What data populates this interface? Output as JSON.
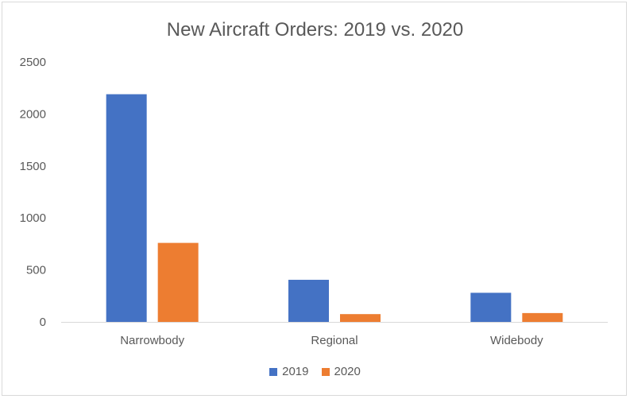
{
  "chart_data": {
    "type": "bar",
    "title": "New Aircraft Orders: 2019 vs. 2020",
    "categories": [
      "Narrowbody",
      "Regional",
      "Widebody"
    ],
    "series": [
      {
        "name": "2019",
        "values": [
          2190,
          405,
          280
        ],
        "color": "#4472c4"
      },
      {
        "name": "2020",
        "values": [
          760,
          75,
          85
        ],
        "color": "#ed7d31"
      }
    ],
    "ylim": [
      0,
      2500
    ],
    "yticks": [
      "0",
      "500",
      "1000",
      "1500",
      "2000",
      "2500"
    ],
    "grid": false,
    "legend": "bottom"
  }
}
